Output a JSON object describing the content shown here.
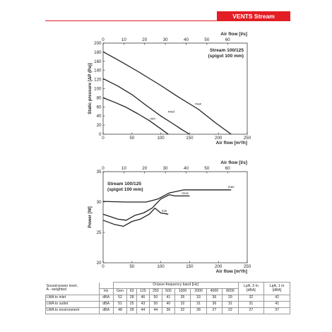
{
  "header": {
    "brand_label": "VENTS Stream",
    "brand_color": "#e31e24"
  },
  "chart_data": [
    {
      "type": "line",
      "ylabel": "Static pressure [ΔP (Pa)]",
      "xlabel": "Air flow [m³/h]",
      "x2label": "Air flow [l/s]",
      "xlim": [
        0,
        250
      ],
      "ylim": [
        0,
        200
      ],
      "x_ticks": [
        0,
        50,
        100,
        150,
        200,
        250
      ],
      "y_ticks": [
        0,
        20,
        40,
        60,
        80,
        100,
        120,
        140,
        160,
        180,
        200
      ],
      "x2_ticks": [
        0,
        10,
        20,
        30,
        40,
        50,
        60
      ],
      "annotation": "Stream 100/125\n(spigot 100 mm)",
      "grid": false,
      "series": [
        {
          "name": "max",
          "x": [
            0,
            30,
            60,
            100,
            130,
            165,
            195,
            222
          ],
          "y": [
            181,
            160,
            138,
            107,
            82,
            55,
            25,
            0
          ]
        },
        {
          "name": "med",
          "x": [
            0,
            25,
            50,
            75,
            100,
            120,
            138,
            150
          ],
          "y": [
            122,
            106,
            87,
            63,
            40,
            24,
            9,
            0
          ]
        },
        {
          "name": "min",
          "x": [
            0,
            20,
            40,
            60,
            80,
            100,
            113
          ],
          "y": [
            80,
            70,
            59,
            45,
            30,
            12,
            0
          ]
        }
      ]
    },
    {
      "type": "line",
      "ylabel": "Power [W]",
      "xlabel": "Air flow [m³/h]",
      "x2label": "Air flow [l/s]",
      "xlim": [
        0,
        250
      ],
      "ylim": [
        20,
        35
      ],
      "x_ticks": [
        0,
        50,
        100,
        150,
        200,
        250
      ],
      "y_ticks": [
        20,
        25,
        30,
        35
      ],
      "x2_ticks": [
        0,
        10,
        20,
        30,
        40,
        50,
        60
      ],
      "annotation": "Stream 100/125\n(spigot 100 mm)",
      "grid": false,
      "series": [
        {
          "name": "max",
          "x": [
            0,
            40,
            75,
            95,
            115,
            140,
            180,
            222
          ],
          "y": [
            30.1,
            30,
            30,
            30.5,
            31.5,
            32,
            32,
            32
          ]
        },
        {
          "name": "med",
          "x": [
            0,
            25,
            40,
            55,
            70,
            85,
            100,
            115,
            125,
            150
          ],
          "y": [
            28,
            27.2,
            27,
            27.8,
            28.2,
            29,
            30.5,
            31.2,
            31,
            31
          ]
        },
        {
          "name": "min",
          "x": [
            0,
            20,
            35,
            50,
            65,
            80,
            90,
            100,
            113
          ],
          "y": [
            27,
            26.3,
            26,
            26.8,
            27.2,
            28,
            29,
            28.2,
            28
          ]
        }
      ]
    }
  ],
  "sound_table": {
    "section_label": [
      "Sound-power level,",
      "A - weighted"
    ],
    "octave_header": "Octave-frequency band [Hz]",
    "lpa3": [
      "LpA, 3 m",
      "[dBA]"
    ],
    "lpa1": [
      "LpA, 1 m",
      "[dBA]"
    ],
    "hz": "Hz",
    "columns": [
      "Gen",
      "63",
      "125",
      "250",
      "500",
      "1000",
      "2000",
      "4000",
      "8000"
    ],
    "rows": [
      {
        "label": "LWA to inlet",
        "unit": "dBA",
        "values": [
          "52",
          "28",
          "46",
          "50",
          "41",
          "35",
          "33",
          "36",
          "29"
        ],
        "lpa3": "32",
        "lpa1": "42"
      },
      {
        "label": "LWA to outlet",
        "unit": "dBA",
        "values": [
          "51",
          "25",
          "43",
          "50",
          "40",
          "32",
          "31",
          "36",
          "31"
        ],
        "lpa3": "31",
        "lpa1": "41"
      },
      {
        "label": "LWA to environment",
        "unit": "dBA",
        "values": [
          "48",
          "28",
          "44",
          "44",
          "36",
          "32",
          "28",
          "27",
          "22"
        ],
        "lpa3": "27",
        "lpa1": "37"
      }
    ]
  }
}
